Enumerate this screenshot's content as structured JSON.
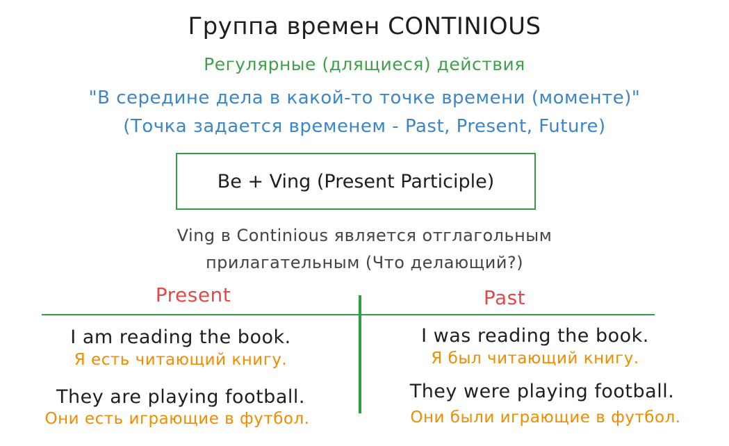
{
  "title": "Группа времен CONTINIOUS",
  "subtitle": "Регулярные (длящиеся) действия",
  "quote": {
    "line1": "\"В середине дела в какой-то точке времени (моменте)\"",
    "line2": "(Точка задается временем - Past, Present, Future)"
  },
  "formula": "Be + Ving (Present Participle)",
  "note": {
    "line1": "Ving в Continious является отглагольным",
    "line2": "прилагательным (Что делающий?)"
  },
  "present": {
    "heading": "Present",
    "examples": [
      {
        "en": "I am reading the book.",
        "ru": "Я есть читающий книгу."
      },
      {
        "en": "They are playing football.",
        "ru": "Они есть играющие в футбол."
      }
    ]
  },
  "past": {
    "heading": "Past",
    "examples": [
      {
        "en": "I was reading the book.",
        "ru": "Я был читающий книгу."
      },
      {
        "en": "They were playing football.",
        "ru": "Они были играющие в футбол."
      }
    ]
  },
  "colors": {
    "title": "#1e1e1e",
    "subtitle": "#40a04a",
    "quote": "#3a86c8",
    "heading": "#e04a4a",
    "translation": "#f08c00",
    "lines": "#2f9e44"
  }
}
